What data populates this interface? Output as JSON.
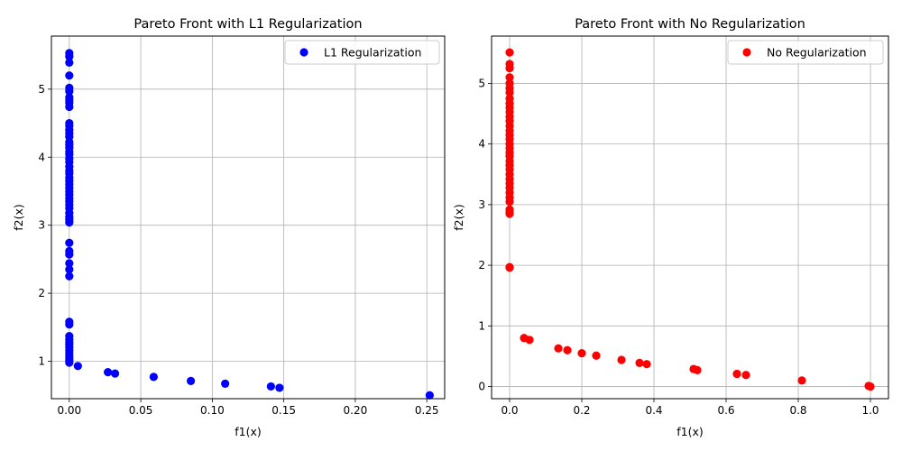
{
  "chart_data": [
    {
      "type": "scatter",
      "title": "Pareto Front with L1 Regularization",
      "xlabel": "f1(x)",
      "ylabel": "f2(x)",
      "xlim": [
        -0.0125,
        0.2625
      ],
      "ylim": [
        0.45,
        5.78
      ],
      "xticks": [
        0.0,
        0.05,
        0.1,
        0.15,
        0.2,
        0.25
      ],
      "xtick_labels": [
        "0.00",
        "0.05",
        "0.10",
        "0.15",
        "0.20",
        "0.25"
      ],
      "yticks": [
        1,
        2,
        3,
        4,
        5
      ],
      "ytick_labels": [
        "1",
        "2",
        "3",
        "4",
        "5"
      ],
      "grid": true,
      "legend_position": "top-right",
      "series": [
        {
          "name": "L1 Regularization",
          "color": "#0000ff",
          "x": [
            0,
            0,
            0,
            0,
            0,
            0,
            0,
            0,
            0,
            0,
            0,
            0,
            0,
            0,
            0,
            0,
            0,
            0,
            0,
            0,
            0,
            0,
            0,
            0,
            0,
            0,
            0,
            0,
            0,
            0,
            0,
            0,
            0,
            0,
            0,
            0,
            0,
            0,
            0,
            0,
            0,
            0,
            0,
            0,
            0,
            0,
            0,
            0,
            0,
            0,
            0,
            0,
            0,
            0,
            0,
            0,
            0,
            0,
            0.006,
            0.027,
            0.032,
            0.059,
            0.085,
            0.109,
            0.141,
            0.147,
            0.252
          ],
          "y": [
            5.53,
            5.48,
            5.39,
            5.2,
            5.02,
            4.97,
            4.88,
            4.84,
            4.8,
            4.74,
            4.5,
            4.46,
            4.4,
            4.35,
            4.3,
            4.22,
            4.18,
            4.14,
            4.08,
            4.04,
            3.98,
            3.93,
            3.86,
            3.8,
            3.76,
            3.7,
            3.65,
            3.6,
            3.55,
            3.5,
            3.45,
            3.4,
            3.35,
            3.3,
            3.25,
            3.18,
            3.12,
            3.08,
            3.04,
            2.74,
            2.62,
            2.57,
            2.44,
            2.35,
            2.25,
            1.58,
            1.54,
            1.37,
            1.32,
            1.28,
            1.24,
            1.2,
            1.16,
            1.12,
            1.08,
            1.04,
            1.01,
            0.98,
            0.93,
            0.84,
            0.82,
            0.77,
            0.71,
            0.67,
            0.63,
            0.61,
            0.5
          ]
        }
      ]
    },
    {
      "type": "scatter",
      "title": "Pareto Front with No Regularization",
      "xlabel": "f1(x)",
      "ylabel": "f2(x)",
      "xlim": [
        -0.05,
        1.05
      ],
      "ylim": [
        -0.2,
        5.78
      ],
      "xticks": [
        0.0,
        0.2,
        0.4,
        0.6,
        0.8,
        1.0
      ],
      "xtick_labels": [
        "0.0",
        "0.2",
        "0.4",
        "0.6",
        "0.8",
        "1.0"
      ],
      "yticks": [
        0,
        1,
        2,
        3,
        4,
        5
      ],
      "ytick_labels": [
        "0",
        "1",
        "2",
        "3",
        "4",
        "5"
      ],
      "grid": true,
      "legend_position": "top-right",
      "series": [
        {
          "name": "No Regularization",
          "color": "#ff0000",
          "x": [
            0,
            0,
            0,
            0,
            0,
            0,
            0,
            0,
            0,
            0,
            0,
            0,
            0,
            0,
            0,
            0,
            0,
            0,
            0,
            0,
            0,
            0,
            0,
            0,
            0,
            0,
            0,
            0,
            0,
            0,
            0,
            0,
            0,
            0,
            0,
            0,
            0.04,
            0.055,
            0.135,
            0.16,
            0.2,
            0.24,
            0.31,
            0.36,
            0.38,
            0.51,
            0.52,
            0.63,
            0.655,
            0.81,
            0.995,
            1.0
          ],
          "y": [
            5.51,
            5.32,
            5.25,
            5.1,
            5.0,
            4.92,
            4.85,
            4.75,
            4.67,
            4.6,
            4.53,
            4.45,
            4.38,
            4.3,
            4.22,
            4.15,
            4.08,
            4.0,
            3.93,
            3.86,
            3.8,
            3.72,
            3.65,
            3.58,
            3.5,
            3.42,
            3.35,
            3.28,
            3.2,
            3.12,
            3.05,
            2.92,
            2.87,
            2.85,
            1.97,
            1.96,
            0.8,
            0.77,
            0.63,
            0.6,
            0.55,
            0.51,
            0.44,
            0.39,
            0.37,
            0.29,
            0.27,
            0.21,
            0.19,
            0.1,
            0.01,
            0.0
          ]
        }
      ]
    }
  ]
}
